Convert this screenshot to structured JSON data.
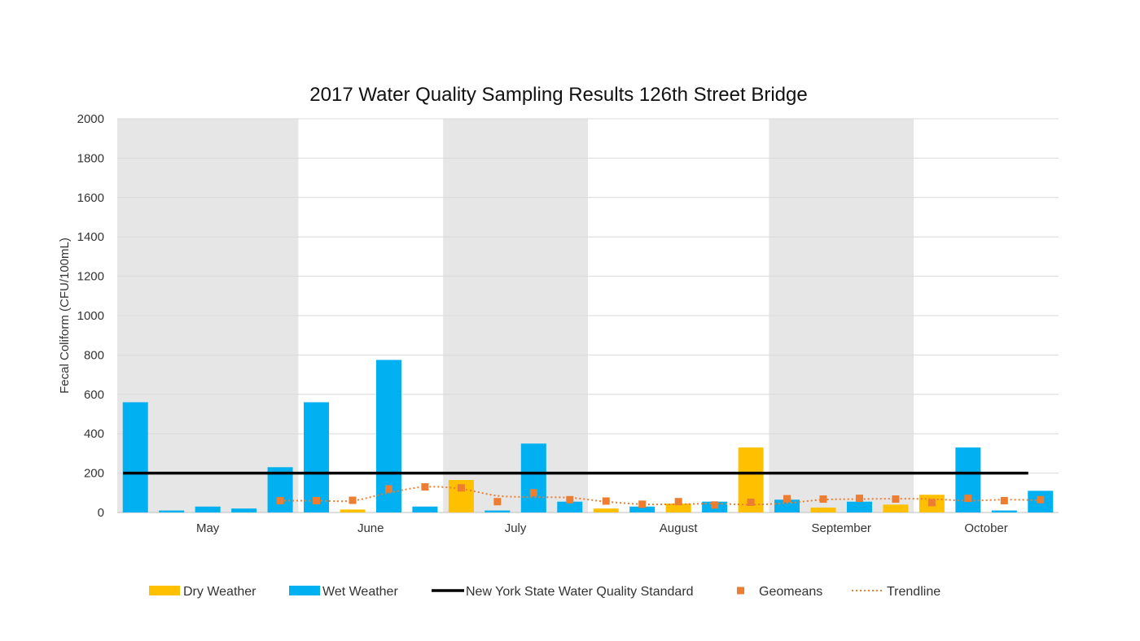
{
  "chart_data": {
    "type": "bar",
    "title": "2017 Water Quality Sampling Results 126th Street Bridge",
    "xlabel": "",
    "ylabel": "Fecal Coliform (CFU/100mL)",
    "ylim": [
      0,
      2000
    ],
    "yticks": [
      0,
      200,
      400,
      600,
      800,
      1000,
      1200,
      1400,
      1600,
      1800,
      2000
    ],
    "grid": true,
    "months": [
      {
        "label": "May",
        "start": 0,
        "end": 4,
        "shaded": true
      },
      {
        "label": "June",
        "start": 5,
        "end": 8,
        "shaded": false
      },
      {
        "label": "July",
        "start": 9,
        "end": 12,
        "shaded": true
      },
      {
        "label": "August",
        "start": 13,
        "end": 17,
        "shaded": false
      },
      {
        "label": "September",
        "start": 18,
        "end": 21,
        "shaded": true
      },
      {
        "label": "October",
        "start": 22,
        "end": 25,
        "shaded": false
      }
    ],
    "samples": [
      {
        "type": "wet",
        "value": 560,
        "geomean": null
      },
      {
        "type": "wet",
        "value": 10,
        "geomean": null
      },
      {
        "type": "wet",
        "value": 30,
        "geomean": null
      },
      {
        "type": "wet",
        "value": 20,
        "geomean": null
      },
      {
        "type": "wet",
        "value": 230,
        "geomean": 60
      },
      {
        "type": "wet",
        "value": 560,
        "geomean": 60
      },
      {
        "type": "dry",
        "value": 15,
        "geomean": 62
      },
      {
        "type": "wet",
        "value": 775,
        "geomean": 120
      },
      {
        "type": "wet",
        "value": 30,
        "geomean": 130
      },
      {
        "type": "dry",
        "value": 165,
        "geomean": 125
      },
      {
        "type": "wet",
        "value": 10,
        "geomean": 55
      },
      {
        "type": "wet",
        "value": 350,
        "geomean": 100
      },
      {
        "type": "wet",
        "value": 55,
        "geomean": 65
      },
      {
        "type": "dry",
        "value": 20,
        "geomean": 58
      },
      {
        "type": "wet",
        "value": 30,
        "geomean": 42
      },
      {
        "type": "dry",
        "value": 45,
        "geomean": 55
      },
      {
        "type": "wet",
        "value": 55,
        "geomean": 38
      },
      {
        "type": "dry",
        "value": 330,
        "geomean": 52
      },
      {
        "type": "wet",
        "value": 65,
        "geomean": 70
      },
      {
        "type": "dry",
        "value": 25,
        "geomean": 68
      },
      {
        "type": "wet",
        "value": 55,
        "geomean": 72
      },
      {
        "type": "dry",
        "value": 40,
        "geomean": 68
      },
      {
        "type": "dry",
        "value": 90,
        "geomean": 50
      },
      {
        "type": "wet",
        "value": 330,
        "geomean": 72
      },
      {
        "type": "wet",
        "value": 10,
        "geomean": 60
      },
      {
        "type": "wet",
        "value": 110,
        "geomean": 65
      }
    ],
    "standard": {
      "name": "New York State Water Quality Standard",
      "value": 200
    },
    "trendline": [
      60,
      60,
      60,
      100,
      130,
      120,
      85,
      78,
      75,
      55,
      42,
      42,
      45,
      40,
      48,
      65,
      68,
      70,
      68,
      60,
      65,
      62
    ],
    "series": [
      {
        "name": "Dry Weather",
        "kind": "bar",
        "color": "#FFC000"
      },
      {
        "name": "Wet Weather",
        "kind": "bar",
        "color": "#00B0F0"
      },
      {
        "name": "New York State Water Quality Standard",
        "kind": "line",
        "color": "#000000"
      },
      {
        "name": "Geomeans",
        "kind": "marker",
        "color": "#ED7D31"
      },
      {
        "name": "Trendline",
        "kind": "dotted-line",
        "color": "#ED7D31"
      }
    ],
    "shading_color": "#E6E6E6",
    "legend_position": "bottom"
  }
}
